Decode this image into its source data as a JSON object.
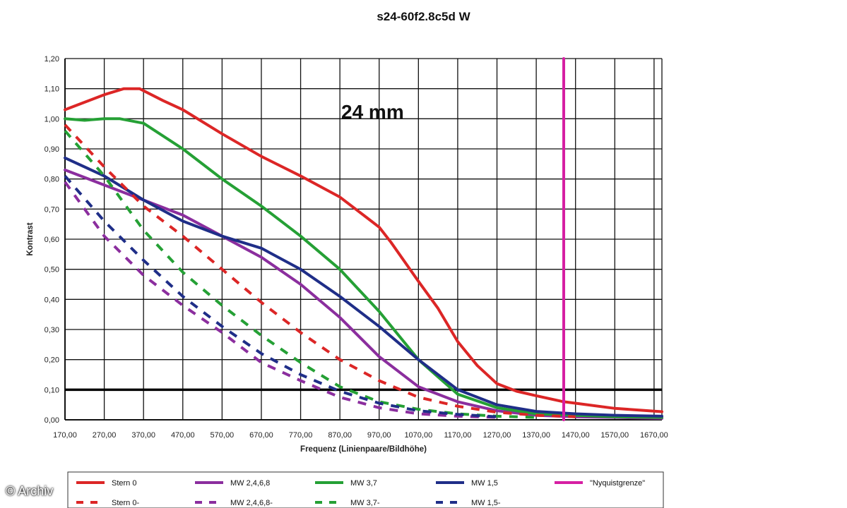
{
  "chart_data": {
    "type": "line",
    "title": "s24-60f2.8c5d W",
    "xlabel": "Frequenz (Linienpaare/Bildhöhe)",
    "ylabel": "Kontrast",
    "annotation": "24 mm",
    "xlim": [
      170,
      1690
    ],
    "ylim": [
      0,
      1.2
    ],
    "x_ticks": [
      "170,00",
      "270,00",
      "370,00",
      "470,00",
      "570,00",
      "670,00",
      "770,00",
      "870,00",
      "970,00",
      "1070,00",
      "1170,00",
      "1270,00",
      "1370,00",
      "1470,00",
      "1570,00",
      "1670,00"
    ],
    "y_ticks": [
      "0,00",
      "0,10",
      "0,20",
      "0,30",
      "0,40",
      "0,50",
      "0,60",
      "0,70",
      "0,80",
      "0,90",
      "1,00",
      "1,10",
      "1,20"
    ],
    "grid": true,
    "reference_line_y": 0.1,
    "nyquist_x": 1440,
    "series": [
      {
        "name": "Stern 0",
        "color": "#dc2626",
        "dashed": false,
        "points": [
          [
            170,
            1.03
          ],
          [
            210,
            1.05
          ],
          [
            270,
            1.08
          ],
          [
            320,
            1.1
          ],
          [
            360,
            1.1
          ],
          [
            420,
            1.06
          ],
          [
            470,
            1.03
          ],
          [
            570,
            0.95
          ],
          [
            670,
            0.875
          ],
          [
            770,
            0.81
          ],
          [
            870,
            0.74
          ],
          [
            940,
            0.67
          ],
          [
            970,
            0.64
          ],
          [
            1000,
            0.59
          ],
          [
            1070,
            0.46
          ],
          [
            1120,
            0.37
          ],
          [
            1170,
            0.26
          ],
          [
            1220,
            0.18
          ],
          [
            1270,
            0.12
          ],
          [
            1320,
            0.095
          ],
          [
            1370,
            0.08
          ],
          [
            1440,
            0.06
          ],
          [
            1470,
            0.055
          ],
          [
            1570,
            0.038
          ],
          [
            1690,
            0.027
          ]
        ]
      },
      {
        "name": "MW 2,4,6,8",
        "color": "#8b2e9e",
        "dashed": false,
        "points": [
          [
            170,
            0.83
          ],
          [
            270,
            0.78
          ],
          [
            370,
            0.73
          ],
          [
            470,
            0.68
          ],
          [
            570,
            0.61
          ],
          [
            670,
            0.54
          ],
          [
            770,
            0.45
          ],
          [
            870,
            0.34
          ],
          [
            970,
            0.21
          ],
          [
            1070,
            0.11
          ],
          [
            1170,
            0.06
          ],
          [
            1270,
            0.03
          ],
          [
            1370,
            0.015
          ],
          [
            1470,
            0.01
          ],
          [
            1570,
            0.008
          ],
          [
            1690,
            0.005
          ]
        ]
      },
      {
        "name": "MW 3,7",
        "color": "#25a035",
        "dashed": false,
        "points": [
          [
            170,
            1.0
          ],
          [
            220,
            0.995
          ],
          [
            270,
            1.0
          ],
          [
            310,
            1.0
          ],
          [
            370,
            0.985
          ],
          [
            470,
            0.9
          ],
          [
            570,
            0.8
          ],
          [
            670,
            0.71
          ],
          [
            770,
            0.61
          ],
          [
            870,
            0.5
          ],
          [
            970,
            0.36
          ],
          [
            1070,
            0.2
          ],
          [
            1170,
            0.085
          ],
          [
            1270,
            0.04
          ],
          [
            1370,
            0.02
          ],
          [
            1470,
            0.015
          ],
          [
            1570,
            0.01
          ],
          [
            1690,
            0.008
          ]
        ]
      },
      {
        "name": "MW 1,5",
        "color": "#1f2e88",
        "dashed": false,
        "points": [
          [
            170,
            0.87
          ],
          [
            270,
            0.81
          ],
          [
            370,
            0.73
          ],
          [
            470,
            0.66
          ],
          [
            570,
            0.61
          ],
          [
            670,
            0.57
          ],
          [
            770,
            0.5
          ],
          [
            870,
            0.41
          ],
          [
            970,
            0.31
          ],
          [
            1070,
            0.2
          ],
          [
            1170,
            0.1
          ],
          [
            1270,
            0.05
          ],
          [
            1370,
            0.028
          ],
          [
            1470,
            0.02
          ],
          [
            1570,
            0.015
          ],
          [
            1690,
            0.012
          ]
        ]
      },
      {
        "name": "\"Nyquistgrenze\"",
        "color": "#d61fa3",
        "dashed": false,
        "points": [
          [
            1440,
            0
          ],
          [
            1440,
            1.2
          ]
        ]
      },
      {
        "name": "Stern 0-",
        "color": "#dc2626",
        "dashed": true,
        "points": [
          [
            170,
            0.98
          ],
          [
            270,
            0.84
          ],
          [
            370,
            0.71
          ],
          [
            470,
            0.61
          ],
          [
            570,
            0.5
          ],
          [
            670,
            0.39
          ],
          [
            770,
            0.29
          ],
          [
            870,
            0.2
          ],
          [
            970,
            0.13
          ],
          [
            1070,
            0.075
          ],
          [
            1170,
            0.045
          ],
          [
            1270,
            0.025
          ],
          [
            1370,
            0.015
          ],
          [
            1470,
            0.01
          ]
        ]
      },
      {
        "name": "MW 2,4,6,8-",
        "color": "#8b2e9e",
        "dashed": true,
        "points": [
          [
            170,
            0.79
          ],
          [
            270,
            0.61
          ],
          [
            370,
            0.48
          ],
          [
            470,
            0.38
          ],
          [
            570,
            0.29
          ],
          [
            670,
            0.19
          ],
          [
            770,
            0.13
          ],
          [
            870,
            0.075
          ],
          [
            970,
            0.04
          ],
          [
            1070,
            0.02
          ],
          [
            1170,
            0.012
          ],
          [
            1270,
            0.008
          ]
        ]
      },
      {
        "name": "MW 3,7-",
        "color": "#25a035",
        "dashed": true,
        "points": [
          [
            170,
            0.96
          ],
          [
            270,
            0.81
          ],
          [
            370,
            0.63
          ],
          [
            470,
            0.49
          ],
          [
            570,
            0.38
          ],
          [
            670,
            0.28
          ],
          [
            770,
            0.19
          ],
          [
            870,
            0.11
          ],
          [
            970,
            0.06
          ],
          [
            1070,
            0.035
          ],
          [
            1170,
            0.02
          ],
          [
            1270,
            0.012
          ],
          [
            1370,
            0.008
          ]
        ]
      },
      {
        "name": "MW 1,5-",
        "color": "#1f2e88",
        "dashed": true,
        "points": [
          [
            170,
            0.81
          ],
          [
            270,
            0.66
          ],
          [
            370,
            0.53
          ],
          [
            470,
            0.41
          ],
          [
            570,
            0.31
          ],
          [
            670,
            0.22
          ],
          [
            770,
            0.15
          ],
          [
            870,
            0.095
          ],
          [
            970,
            0.055
          ],
          [
            1070,
            0.03
          ],
          [
            1170,
            0.018
          ],
          [
            1270,
            0.01
          ]
        ]
      }
    ],
    "legend_placement": "bottom"
  },
  "watermark": "© Archiv"
}
